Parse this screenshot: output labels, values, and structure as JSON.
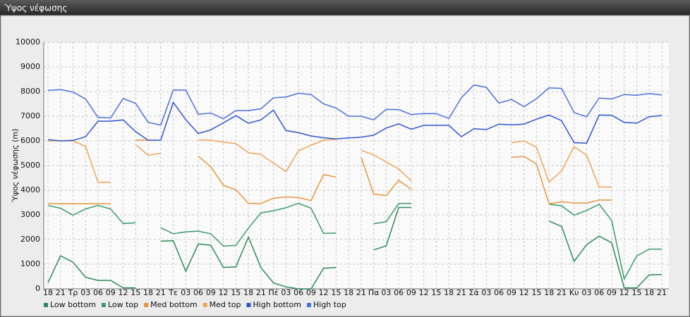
{
  "chart_data": {
    "type": "line",
    "title": "Ύψος νέφωσης",
    "y_label": "Ύψος νέφωσης (m)",
    "categories": [
      "18",
      "21",
      "Τρ",
      "03",
      "06",
      "09",
      "12",
      "15",
      "18",
      "21",
      "Τε",
      "03",
      "06",
      "09",
      "12",
      "15",
      "18",
      "21",
      "Πέ",
      "03",
      "06",
      "09",
      "12",
      "15",
      "18",
      "21",
      "Πα",
      "03",
      "06",
      "09",
      "12",
      "15",
      "18",
      "21",
      "Σά",
      "03",
      "06",
      "09",
      "12",
      "15",
      "18",
      "21",
      "Κυ",
      "03",
      "06",
      "09",
      "12",
      "15",
      "18",
      "21"
    ],
    "ylim": [
      0,
      10000
    ],
    "yticks": [
      0,
      1000,
      2000,
      3000,
      4000,
      5000,
      6000,
      7000,
      8000,
      9000,
      10000
    ],
    "grid": true,
    "legend": "bottom-left",
    "series": [
      {
        "name": "Low bottom",
        "color": "#2e8a5a",
        "values": [
          250,
          1340,
          1080,
          470,
          340,
          340,
          40,
          40,
          null,
          1930,
          1950,
          710,
          1820,
          1770,
          870,
          890,
          2100,
          860,
          240,
          80,
          0,
          0,
          830,
          870,
          null,
          null,
          1580,
          1740,
          3300,
          3300,
          null,
          null,
          null,
          null,
          null,
          null,
          null,
          null,
          null,
          null,
          2750,
          2530,
          1110,
          1790,
          2140,
          1870,
          40,
          40,
          570,
          580
        ]
      },
      {
        "name": "Low top",
        "color": "#3a9a6a",
        "values": [
          3380,
          3270,
          2990,
          3240,
          3380,
          3240,
          2650,
          2680,
          null,
          2480,
          2230,
          2310,
          2340,
          2230,
          1730,
          1760,
          2460,
          3080,
          3170,
          3290,
          3470,
          3270,
          2250,
          2260,
          null,
          null,
          2640,
          2720,
          3460,
          3460,
          null,
          null,
          null,
          null,
          null,
          null,
          null,
          null,
          null,
          null,
          3430,
          3370,
          2990,
          3180,
          3430,
          2770,
          400,
          1330,
          1610,
          1610
        ]
      },
      {
        "name": "Med bottom",
        "color": "#e8963a",
        "values": [
          3450,
          3450,
          3450,
          3450,
          3450,
          3450,
          null,
          6030,
          6030,
          null,
          null,
          null,
          5380,
          4950,
          4200,
          4020,
          3470,
          3460,
          3680,
          3720,
          3700,
          3580,
          4630,
          4530,
          null,
          5330,
          3850,
          3780,
          4400,
          4030,
          null,
          null,
          null,
          null,
          null,
          null,
          null,
          5330,
          5370,
          5060,
          3450,
          3530,
          3480,
          3480,
          3600,
          3600,
          null,
          null,
          null,
          null
        ]
      },
      {
        "name": "Med top",
        "color": "#f0a455",
        "values": [
          6000,
          6000,
          6000,
          5780,
          4320,
          4320,
          null,
          5850,
          5420,
          5500,
          null,
          null,
          6030,
          6030,
          5950,
          5890,
          5520,
          5450,
          5100,
          4750,
          5600,
          5820,
          6030,
          6070,
          null,
          5620,
          5430,
          5150,
          4860,
          4380,
          null,
          null,
          null,
          null,
          null,
          null,
          null,
          5920,
          6000,
          5740,
          4330,
          4780,
          5770,
          5420,
          4130,
          4130,
          null,
          null,
          null,
          null
        ]
      },
      {
        "name": "High bottom",
        "color": "#2f55d4",
        "values": [
          6050,
          6000,
          6020,
          6170,
          6800,
          6800,
          6850,
          6370,
          6030,
          6030,
          7560,
          6860,
          6300,
          6450,
          6730,
          7020,
          6720,
          6850,
          7250,
          6420,
          6330,
          6200,
          6130,
          6080,
          6120,
          6150,
          6230,
          6520,
          6690,
          6470,
          6630,
          6630,
          6630,
          6170,
          6490,
          6460,
          6680,
          6650,
          6680,
          6880,
          7050,
          6820,
          5930,
          5910,
          7050,
          7040,
          6750,
          6720,
          6980,
          7030
        ]
      },
      {
        "name": "High top",
        "color": "#4a6fe0",
        "values": [
          8050,
          8080,
          7980,
          7700,
          6950,
          6930,
          7720,
          7520,
          6750,
          6640,
          8060,
          8060,
          7080,
          7130,
          6900,
          7230,
          7230,
          7300,
          7750,
          7780,
          7930,
          7880,
          7500,
          7330,
          7000,
          7000,
          6850,
          7280,
          7270,
          7070,
          7110,
          7110,
          6910,
          7750,
          8270,
          8170,
          7530,
          7680,
          7390,
          7710,
          8150,
          8130,
          7150,
          6980,
          7740,
          7700,
          7880,
          7850,
          7920,
          7860
        ]
      }
    ]
  }
}
